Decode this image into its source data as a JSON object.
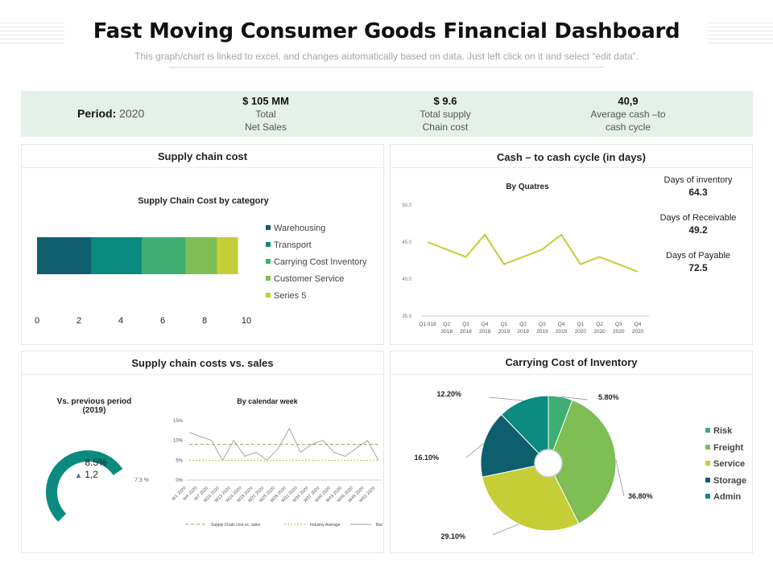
{
  "header": {
    "title": "Fast Moving Consumer Goods Financial Dashboard",
    "subtitle": "This graph/chart is linked to excel, and changes automatically based on data. Just left click on it and select “edit data”."
  },
  "kpis": {
    "period_label": "Period:",
    "period_value": "2020",
    "items": [
      {
        "value": "$ 105 MM",
        "line1": "Total",
        "line2": "Net Sales"
      },
      {
        "value": "$ 9.6",
        "line1": "Total supply",
        "line2": "Chain cost"
      },
      {
        "value": "40,9",
        "line1": "Average cash –to",
        "line2": "cash cycle"
      }
    ]
  },
  "panels": {
    "supply_chain_cost": {
      "title": "Supply chain cost",
      "chart_title": "Supply Chain Cost by category"
    },
    "cash_cycle": {
      "title": "Cash – to cash cycle (in days)",
      "chart_title": "By Quatres",
      "days": [
        {
          "label": "Days of inventory",
          "value": "64.3"
        },
        {
          "label": "Days of Receivable",
          "value": "49.2"
        },
        {
          "label": "Days of Payable",
          "value": "72.5"
        }
      ]
    },
    "costs_vs_sales": {
      "title": "Supply chain costs vs. sales",
      "gauge_title_1": "Vs. previous period",
      "gauge_title_2": "(2019)",
      "gauge_value": "8.5%",
      "gauge_delta_icon": "triangle-up-icon",
      "gauge_delta": "1,2",
      "gauge_end_label": "7.3 %",
      "weekly_title": "By calendar week"
    },
    "carrying_cost": {
      "title": "Carrying Cost of Inventory"
    }
  },
  "colors": {
    "dark_teal": "#0f5e6e",
    "teal": "#0b8a80",
    "green": "#3fae73",
    "light_green": "#7fbd55",
    "lime": "#c5ce36",
    "kpi_band": "#e3f1e9",
    "line_lime": "#c5ce36"
  },
  "chart_data": [
    {
      "id": "supply_chain_cost_by_category",
      "type": "bar",
      "orientation": "horizontal-stacked",
      "title": "Supply Chain Cost by category",
      "series": [
        {
          "name": "Warehousing",
          "values": [
            2.6
          ],
          "color": "#0f5e6e"
        },
        {
          "name": "Transport",
          "values": [
            2.4
          ],
          "color": "#0b8a80"
        },
        {
          "name": "Carrying Cost Inventory",
          "values": [
            2.1
          ],
          "color": "#3fae73"
        },
        {
          "name": "Customer Service",
          "values": [
            1.5
          ],
          "color": "#7fbd55"
        },
        {
          "name": "Series 5",
          "values": [
            1.0
          ],
          "color": "#c5ce36"
        }
      ],
      "xlim": [
        0,
        10
      ],
      "xticks": [
        "0",
        "2",
        "4",
        "6",
        "8",
        "10"
      ],
      "legend": "right"
    },
    {
      "id": "cash_cycle_by_quarter",
      "type": "line",
      "title": "By Quatres",
      "categories": [
        [
          "Q1 018",
          ""
        ],
        [
          "Q2",
          "2018"
        ],
        [
          "Q3",
          "2018"
        ],
        [
          "Q4",
          "2018"
        ],
        [
          "Q1",
          "2019"
        ],
        [
          "Q2",
          "2019"
        ],
        [
          "Q3",
          "2019"
        ],
        [
          "Q4",
          "2019"
        ],
        [
          "Q1",
          "2020"
        ],
        [
          "Q2",
          "2020"
        ],
        [
          "Q3",
          "2020"
        ],
        [
          "Q4",
          "2020"
        ]
      ],
      "series": [
        {
          "name": "Cash to cash cycle",
          "values": [
            45,
            44,
            43,
            46,
            42,
            43,
            44,
            46,
            42,
            43,
            42,
            41
          ],
          "color": "#c5ce36"
        }
      ],
      "ylim": [
        35,
        50
      ],
      "yticks": [
        "35.0",
        "40.0",
        "45.0",
        "50.0"
      ]
    },
    {
      "id": "costs_vs_sales_gauge",
      "type": "gauge",
      "value": 8.5,
      "max": 12,
      "color": "#0b8a80"
    },
    {
      "id": "costs_vs_sales_weekly",
      "type": "line",
      "title": "By calendar week",
      "categories": [
        "W1 2020",
        "W4 2020",
        "W7 2020",
        "W10 2020",
        "W13 2020",
        "W16 2020",
        "W19 2020",
        "W22 2020",
        "W25 2020",
        "W28 2020",
        "W31 2020",
        "W34 2020",
        "W37 2020",
        "W40 2020",
        "W43 2020",
        "W46 2020",
        "W49 2020",
        "W52 2020"
      ],
      "series": [
        {
          "name": "Supply Chain cost vs. sales",
          "values": [
            9,
            9,
            9,
            9,
            9,
            9,
            9,
            9,
            9,
            9,
            9,
            9,
            9,
            9,
            9,
            9,
            9,
            9
          ],
          "color": "#8faa5a",
          "dash": "4,3"
        },
        {
          "name": "Industry Average",
          "values": [
            5,
            5,
            5,
            5,
            5,
            5,
            5,
            5,
            5,
            5,
            5,
            5,
            5,
            5,
            5,
            5,
            5,
            5
          ],
          "color": "#b6c93d",
          "dash": "2,2"
        },
        {
          "name": "Best in class",
          "values": [
            12,
            11,
            10,
            5,
            10,
            6,
            7,
            5,
            8,
            13,
            7,
            9,
            10,
            7,
            6,
            8,
            10,
            5
          ],
          "color": "#a6a6a6",
          "dash": ""
        }
      ],
      "ylim": [
        0,
        15
      ],
      "yticks": [
        "0%",
        "5%",
        "10%",
        "15%"
      ],
      "legend": "bottom"
    },
    {
      "id": "carrying_cost_of_inventory",
      "type": "pie",
      "title": "Carrying Cost of Inventory",
      "slices": [
        {
          "name": "Risk",
          "value": 5.8,
          "label": "5.80%",
          "color": "#3fae73"
        },
        {
          "name": "Freight",
          "value": 36.8,
          "label": "36.80%",
          "color": "#7fbd55"
        },
        {
          "name": "Service",
          "value": 29.1,
          "label": "29.10%",
          "color": "#c5ce36"
        },
        {
          "name": "Storage",
          "value": 16.1,
          "label": "16.10%",
          "color": "#0f5e6e"
        },
        {
          "name": "Admin",
          "value": 12.2,
          "label": "12.20%",
          "color": "#0b8a80"
        }
      ],
      "legend": "right"
    }
  ]
}
